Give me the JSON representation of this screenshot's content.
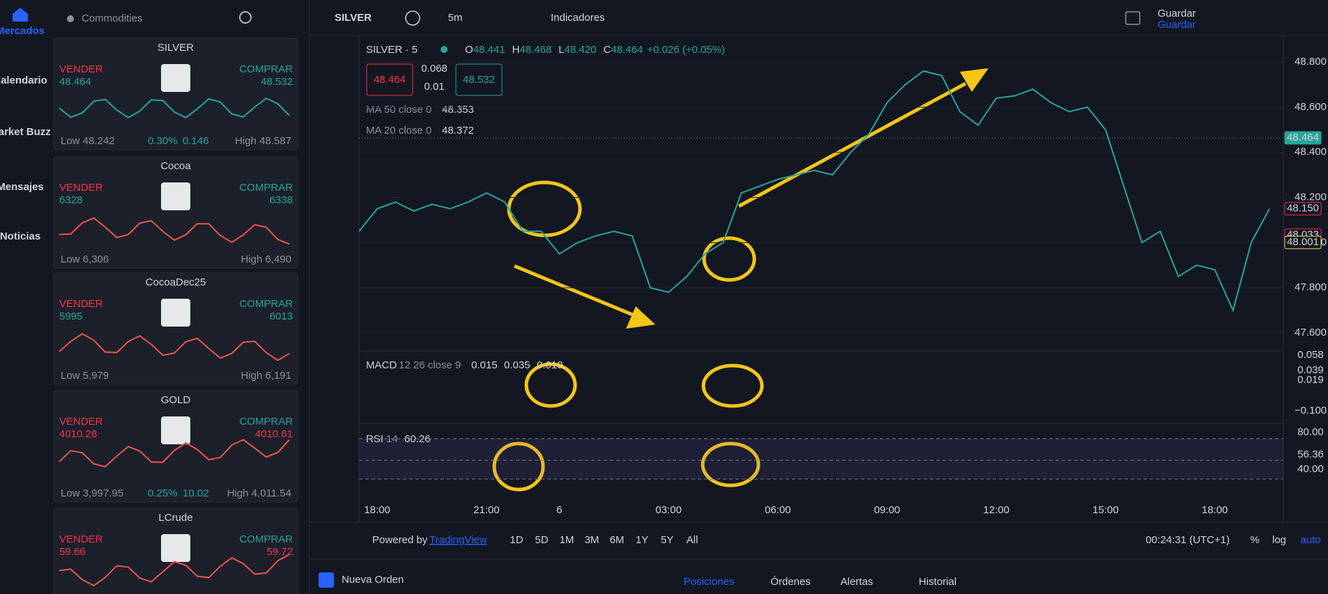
{
  "nav": {
    "items": [
      "Mercados",
      "Calendario",
      "Market Buzz",
      "Mensajes",
      "Noticias"
    ]
  },
  "watchlist": {
    "title": "Commodities",
    "cards": [
      {
        "name": "SILVER",
        "sell_label": "VENDER",
        "sell": "48.464",
        "buy_label": "COMPRAR",
        "buy": "48.532",
        "low": "Low 48.242",
        "change": "0.30%",
        "change_abs": "0.146",
        "high": "High 48.587",
        "trend": "up"
      },
      {
        "name": "Cocoa",
        "sell_label": "VENDER",
        "sell": "6328",
        "buy_label": "COMPRAR",
        "buy": "6338",
        "low": "Low 6,306",
        "high": "High 6,490",
        "trend": "up-red"
      },
      {
        "name": "CocoaDec25",
        "sell_label": "VENDER",
        "sell": "5995",
        "buy_label": "COMPRAR",
        "buy": "6013",
        "low": "Low 5,979",
        "high": "High 6,191",
        "trend": "up-red"
      },
      {
        "name": "GOLD",
        "sell_label": "VENDER",
        "sell": "4010.28",
        "buy_label": "COMPRAR",
        "buy": "4010.61",
        "low": "Low 3,997.95",
        "change": "0.25%",
        "change_abs": "10.02",
        "high": "High 4,011.54",
        "trend": "down"
      },
      {
        "name": "LCrude",
        "sell_label": "VENDER",
        "sell": "59.66",
        "buy_label": "COMPRAR",
        "buy": "59.72",
        "trend": "down"
      }
    ]
  },
  "toolbar": {
    "symbol": "SILVER",
    "interval": "5m",
    "indicators": "Indicadores",
    "save": "Guardar",
    "save_sub": "Guardar"
  },
  "legend": {
    "symbol": "SILVER · 5",
    "ohlc": [
      {
        "label": "O",
        "value": "48.441"
      },
      {
        "label": "H",
        "value": "48.468"
      },
      {
        "label": "L",
        "value": "48.420"
      },
      {
        "label": "C",
        "value": "48.464"
      }
    ],
    "change": "+0.026 (+0.05%)",
    "sell_box": "48.464",
    "spread": "0.068",
    "spread_sub": "0.01",
    "buy_box": "48.532",
    "indicators": [
      {
        "name": "MA 50 close 0",
        "value": "48.353"
      },
      {
        "name": "MA 20 close 0",
        "value": "48.372"
      }
    ]
  },
  "macd": {
    "name": "MACD",
    "params": "12 26 close 9",
    "values": [
      "0.015",
      "0.035",
      "0.019"
    ],
    "axis": [
      "0.058",
      "0.039",
      "0.019",
      "−0.100"
    ]
  },
  "rsi": {
    "name": "RSI",
    "params": "14",
    "value": "60.26",
    "axis": [
      "80.00",
      "56.36",
      "40.00"
    ]
  },
  "chart_data": {
    "type": "line",
    "color": "#26a69a",
    "categories": [
      null,
      "18:00",
      null,
      null,
      null,
      null,
      null,
      "21:00",
      null,
      null,
      null,
      "6",
      null,
      null,
      null,
      null,
      null,
      "03:00",
      null,
      null,
      null,
      null,
      null,
      "06:00",
      null,
      null,
      null,
      null,
      null,
      "09:00",
      null,
      null,
      null,
      null,
      null,
      "12:00",
      null,
      null,
      null,
      null,
      null,
      "15:00",
      null,
      null,
      null,
      null,
      null,
      "18:00",
      null,
      null,
      null
    ],
    "values": [
      48.05,
      48.15,
      48.18,
      48.14,
      48.17,
      48.15,
      48.18,
      48.22,
      48.18,
      48.05,
      48.05,
      47.95,
      48.0,
      48.03,
      48.05,
      48.03,
      47.8,
      47.78,
      47.85,
      47.95,
      48.0,
      48.22,
      48.25,
      48.28,
      48.3,
      48.32,
      48.3,
      48.4,
      48.48,
      48.62,
      48.7,
      48.76,
      48.74,
      48.58,
      48.52,
      48.64,
      48.65,
      48.68,
      48.62,
      48.58,
      48.6,
      48.5,
      48.25,
      48.0,
      48.05,
      47.85,
      47.9,
      47.88,
      47.7,
      48.0,
      48.15
    ],
    "ylim": [
      47.52,
      48.905
    ],
    "yticks": [
      {
        "value": 48.8,
        "label": "48.800"
      },
      {
        "value": 48.6,
        "label": "48.600"
      },
      {
        "value": 48.4,
        "label": "48.400"
      },
      {
        "value": 48.2,
        "label": "48.200"
      },
      {
        "value": 48.0,
        "label": "48.000"
      },
      {
        "value": 47.8,
        "label": "47.800"
      },
      {
        "value": 47.6,
        "label": "47.600"
      }
    ],
    "price_tags": [
      {
        "value": 48.464,
        "label": "48.464",
        "color": "#26a69a"
      },
      {
        "value": 48.15,
        "label": "48.150",
        "color": "#f23645"
      },
      {
        "value": 48.033,
        "label": "48.033",
        "color": "#e91e63"
      },
      {
        "value": 48.001,
        "label": "48.001",
        "color": "#ffeb3b"
      }
    ]
  },
  "bottom": {
    "powered": "Powered by",
    "brand": "TradingView",
    "ranges": [
      "1D",
      "5D",
      "1M",
      "3M",
      "6M",
      "1Y",
      "5Y",
      "All"
    ],
    "clock": "00:24:31 (UTC+1)",
    "percent": "%",
    "log": "log",
    "auto": "auto"
  },
  "footer": {
    "order": "Nueva Orden",
    "tabs": [
      "Posiciones",
      "Órdenes",
      "Alertas",
      "Historial"
    ]
  }
}
